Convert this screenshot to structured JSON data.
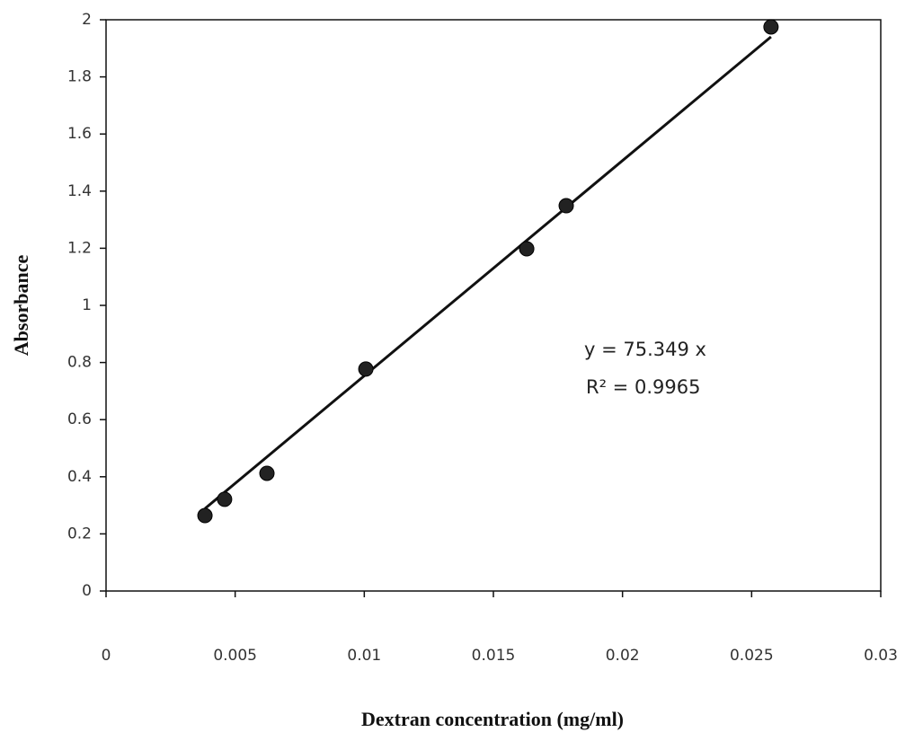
{
  "chart_data": {
    "type": "scatter",
    "x_label": "Dextran concentration  (mg/ml)",
    "y_label": "Absorbance",
    "series": [
      {
        "color": "#222222",
        "x": [
          0.00383,
          0.00459,
          0.00623,
          0.01006,
          0.01629,
          0.01782,
          0.02575
        ],
        "values": [
          0.264,
          0.321,
          0.412,
          0.777,
          1.198,
          1.349,
          1.975
        ]
      }
    ],
    "trendline": {
      "slope": 75.349,
      "equation": "y = 75.349 x",
      "r_squared": "R² = 0.9965"
    },
    "xlim": [
      0,
      0.03
    ],
    "xticks": [
      0,
      0.005,
      0.01,
      0.015,
      0.02,
      0.025,
      0.03
    ],
    "ylim": [
      0,
      2
    ],
    "yticks": [
      0,
      0.2,
      0.4,
      0.6,
      0.8,
      1,
      1.2,
      1.4,
      1.6,
      1.8,
      2
    ]
  }
}
